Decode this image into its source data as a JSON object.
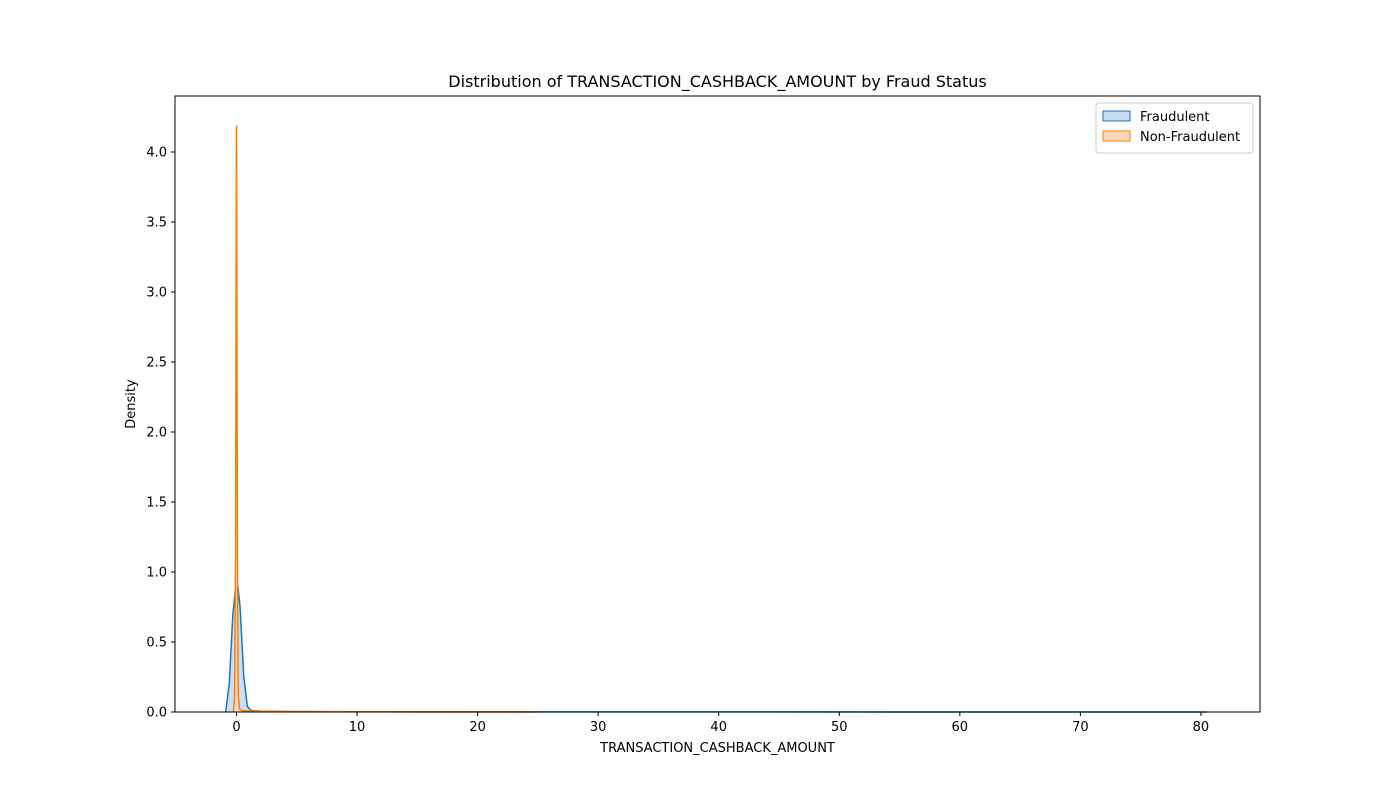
{
  "chart_data": {
    "type": "area",
    "title": "Distribution of TRANSACTION_CASHBACK_AMOUNT by Fraud Status",
    "xlabel": "TRANSACTION_CASHBACK_AMOUNT",
    "ylabel": "Density",
    "xlim": [
      -5.1,
      84.9
    ],
    "ylim": [
      0,
      4.4
    ],
    "xticks": [
      0,
      10,
      20,
      30,
      40,
      50,
      60,
      70,
      80
    ],
    "xtick_labels": [
      "0",
      "10",
      "20",
      "30",
      "40",
      "50",
      "60",
      "70",
      "80"
    ],
    "yticks": [
      0,
      0.5,
      1.0,
      1.5,
      2.0,
      2.5,
      3.0,
      3.5,
      4.0
    ],
    "ytick_labels": [
      "0.0",
      "0.5",
      "1.0",
      "1.5",
      "2.0",
      "2.5",
      "3.0",
      "3.5",
      "4.0"
    ],
    "grid": false,
    "legend_position": "top-right",
    "series": [
      {
        "name": "Fraudulent",
        "color": "#1f77b4",
        "fill_color": "#c6dbef",
        "x": [
          -0.9,
          -0.6,
          -0.3,
          -0.1,
          0.1,
          0.3,
          0.6,
          0.9,
          1.2,
          2,
          4,
          8,
          15,
          25,
          40,
          60,
          80.5
        ],
        "y": [
          0,
          0.2,
          0.7,
          0.86,
          0.91,
          0.75,
          0.26,
          0.04,
          0.012,
          0.006,
          0.004,
          0.002,
          0.001,
          0.0008,
          0.0005,
          0.0003,
          0
        ]
      },
      {
        "name": "Non-Fraudulent",
        "color": "#ff7f0e",
        "fill_color": "#fdd9b5",
        "x": [
          -0.25,
          -0.15,
          -0.08,
          -0.03,
          0.0,
          0.03,
          0.08,
          0.15,
          0.25,
          0.5,
          1.0,
          2,
          5,
          10,
          20,
          25
        ],
        "y": [
          0,
          0.12,
          1.1,
          3.3,
          4.19,
          3.3,
          1.1,
          0.12,
          0.02,
          0.01,
          0.008,
          0.006,
          0.004,
          0.002,
          0.001,
          0
        ]
      }
    ]
  }
}
